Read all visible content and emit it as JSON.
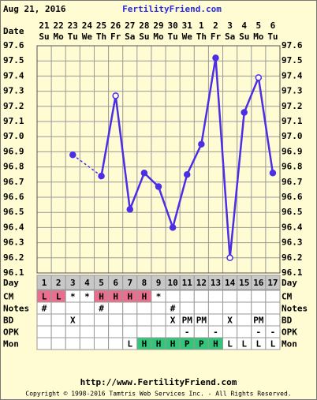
{
  "header": {
    "date": "Aug 21, 2016",
    "site": "FertilityFriend.com"
  },
  "chart_data": {
    "type": "line",
    "x_label": "Date",
    "categories": [
      "21",
      "22",
      "23",
      "24",
      "25",
      "26",
      "27",
      "28",
      "29",
      "30",
      "31",
      "1",
      "2",
      "3",
      "4",
      "5",
      "6"
    ],
    "weekdays": [
      "Su",
      "Mo",
      "Tu",
      "We",
      "Th",
      "Fr",
      "Sa",
      "Su",
      "Mo",
      "Tu",
      "We",
      "Th",
      "Fr",
      "Sa",
      "Su",
      "Mo",
      "Tu"
    ],
    "series": [
      {
        "color": "#4b2ee6",
        "values": [
          null,
          null,
          96.88,
          null,
          96.74,
          97.27,
          96.52,
          96.76,
          96.67,
          96.4,
          96.75,
          96.95,
          97.52,
          96.2,
          97.16,
          97.39,
          96.76
        ],
        "open_markers": [
          5,
          13,
          15
        ]
      }
    ],
    "ylim": [
      96.1,
      97.6
    ],
    "yticks": [
      96.1,
      96.2,
      96.3,
      96.4,
      96.5,
      96.6,
      96.7,
      96.8,
      96.9,
      {
        "value": 97,
        "label": "97.0"
      },
      97.1,
      97.2,
      97.3,
      97.4,
      97.5,
      97.6
    ],
    "grid": true
  },
  "table": {
    "rows": [
      {
        "label": "Day",
        "fill": "#c8c8c8",
        "cells": [
          "1",
          "2",
          "3",
          "4",
          "5",
          "6",
          "7",
          "8",
          "9",
          "10",
          "11",
          "12",
          "13",
          "14",
          "15",
          "16",
          "17"
        ]
      },
      {
        "label": "CM",
        "cells": [
          "L",
          "L",
          "*",
          "*",
          "H",
          "H",
          "H",
          "H",
          "*",
          null,
          null,
          null,
          null,
          null,
          null,
          null,
          null
        ],
        "fills": [
          "#e8708e",
          "#e8708e",
          null,
          null,
          "#e8708e",
          "#e8708e",
          "#e8708e",
          "#e8708e",
          null,
          null,
          null,
          null,
          null,
          null,
          null,
          null,
          null
        ]
      },
      {
        "label": "Notes",
        "cells": [
          "#",
          null,
          null,
          null,
          "#",
          null,
          null,
          null,
          null,
          "#",
          null,
          null,
          null,
          null,
          null,
          null,
          null
        ]
      },
      {
        "label": "BD",
        "cells": [
          null,
          null,
          "X",
          null,
          null,
          null,
          null,
          null,
          null,
          "X",
          "PM",
          "PM",
          null,
          "X",
          null,
          "PM",
          null
        ]
      },
      {
        "label": "OPK",
        "cells": [
          null,
          null,
          null,
          null,
          null,
          null,
          null,
          null,
          null,
          null,
          "-",
          null,
          "-",
          null,
          null,
          "-",
          "-"
        ]
      },
      {
        "label": "Mon",
        "cells": [
          null,
          null,
          null,
          null,
          null,
          null,
          "L",
          "H",
          "H",
          "H",
          "P",
          "P",
          "H",
          "L",
          "L",
          "L",
          "L"
        ],
        "fills": [
          null,
          null,
          null,
          null,
          null,
          null,
          null,
          "#33c57a",
          "#33c57a",
          "#33c57a",
          "#33c57a",
          "#33c57a",
          "#33c57a",
          null,
          null,
          null,
          null
        ]
      }
    ]
  },
  "footer": {
    "url": "http://www.FertilityFriend.com",
    "copyright": "Copyright © 1998-2016 Tamtris Web Services Inc. - All Rights Reserved."
  }
}
